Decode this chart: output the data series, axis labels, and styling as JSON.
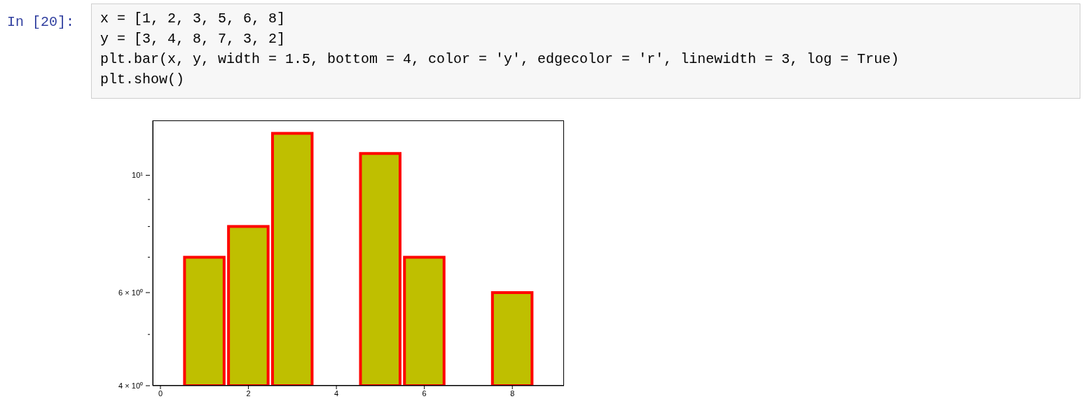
{
  "chart_data": {
    "type": "bar",
    "x": [
      1,
      2,
      3,
      5,
      6,
      8
    ],
    "base": [
      4,
      4,
      4,
      4,
      4,
      4
    ],
    "values": [
      3,
      4,
      8,
      7,
      3,
      2
    ],
    "color": "#bfbf00",
    "log": "y",
    "grid": false,
    "xlim": [
      -0.175,
      9.175
    ],
    "xticks": [
      0,
      2,
      4,
      6,
      8
    ],
    "ylim": [
      4,
      12.7
    ],
    "yticks": [
      {
        "value": 4,
        "label": "4 × 10⁰"
      },
      {
        "value": 5,
        "label": null
      },
      {
        "value": 6,
        "label": "6 × 10⁰"
      },
      {
        "value": 7,
        "label": null
      },
      {
        "value": 8,
        "label": null
      },
      {
        "value": 9,
        "label": null
      },
      {
        "value": 10,
        "label": "10¹"
      }
    ],
    "annotations": [
      "In  [20]:",
      "x = [1, 2, 3, 5, 6, 8]",
      "y = [3, 4, 8, 7, 3, 2]",
      "plt.bar(x, y, width = 1.5, bottom = 4, color = 'y', edgecolor = 'r', linewidth = 3, log = True)",
      "plt.show()"
    ]
  }
}
